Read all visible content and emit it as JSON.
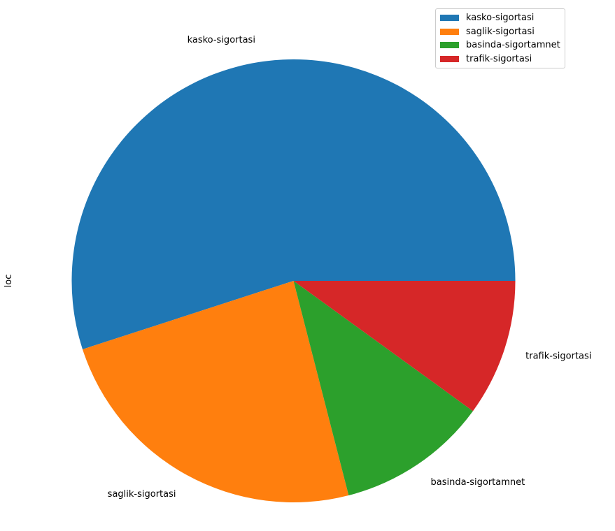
{
  "chart_data": {
    "type": "pie",
    "ylabel": "loc",
    "start_angle_deg": 0,
    "direction": "counterclockwise",
    "legend_position": "top-right",
    "slices": [
      {
        "label": "kasko-sigortasi",
        "value": 55,
        "color": "#1f77b4"
      },
      {
        "label": "saglik-sigortasi",
        "value": 24,
        "color": "#ff7f0e"
      },
      {
        "label": "basinda-sigortamnet",
        "value": 11,
        "color": "#2ca02c"
      },
      {
        "label": "trafik-sigortasi",
        "value": 10,
        "color": "#d62728"
      }
    ]
  }
}
